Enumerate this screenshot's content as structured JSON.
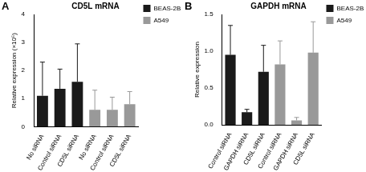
{
  "chart_data": [
    {
      "type": "bar",
      "annotation": "A",
      "title": "CD5L mRNA",
      "y_label": "Relative expression (×10⁵)",
      "categories": [
        "No siRNA",
        "Control siRNA",
        "CD5L siRNA",
        "No siRNA",
        "Control siRNA",
        "CD5L siRNA"
      ],
      "series": [
        {
          "name": "BEAS-2B",
          "color": "#1a1a1a",
          "values": [
            1.1,
            1.35,
            1.6,
            null,
            null,
            null
          ],
          "errors": [
            1.2,
            0.7,
            1.35,
            null,
            null,
            null
          ]
        },
        {
          "name": "A549",
          "color": "#999999",
          "values": [
            null,
            null,
            null,
            0.6,
            0.6,
            0.8
          ],
          "errors": [
            null,
            null,
            null,
            0.7,
            0.45,
            0.45
          ]
        }
      ],
      "ylim": [
        0,
        4
      ],
      "yticks": [
        0,
        1,
        2,
        3,
        4
      ],
      "grid": false,
      "legend": "right"
    },
    {
      "type": "bar",
      "annotation": "B",
      "title": "GAPDH mRNA",
      "y_label": "Relative expression",
      "categories": [
        "Control siRNA",
        "GAPDH siRNA",
        "CD5L siRNA",
        "Control siRNA",
        "GAPDH siRNA",
        "CD5L siRNA"
      ],
      "series": [
        {
          "name": "BEAS-2B",
          "color": "#1a1a1a",
          "values": [
            0.95,
            0.17,
            0.72,
            null,
            null,
            null
          ],
          "errors": [
            0.4,
            0.04,
            0.36,
            null,
            null,
            null
          ]
        },
        {
          "name": "A549",
          "color": "#999999",
          "values": [
            null,
            null,
            null,
            0.82,
            0.06,
            0.98
          ],
          "errors": [
            null,
            null,
            null,
            0.32,
            0.04,
            0.42
          ]
        }
      ],
      "ylim": [
        0,
        1.5
      ],
      "yticks": [
        {
          "value": 0,
          "label": "0.0"
        },
        0.5,
        {
          "value": 1,
          "label": "1.0"
        },
        1.5
      ],
      "grid": false,
      "legend": "right"
    }
  ]
}
